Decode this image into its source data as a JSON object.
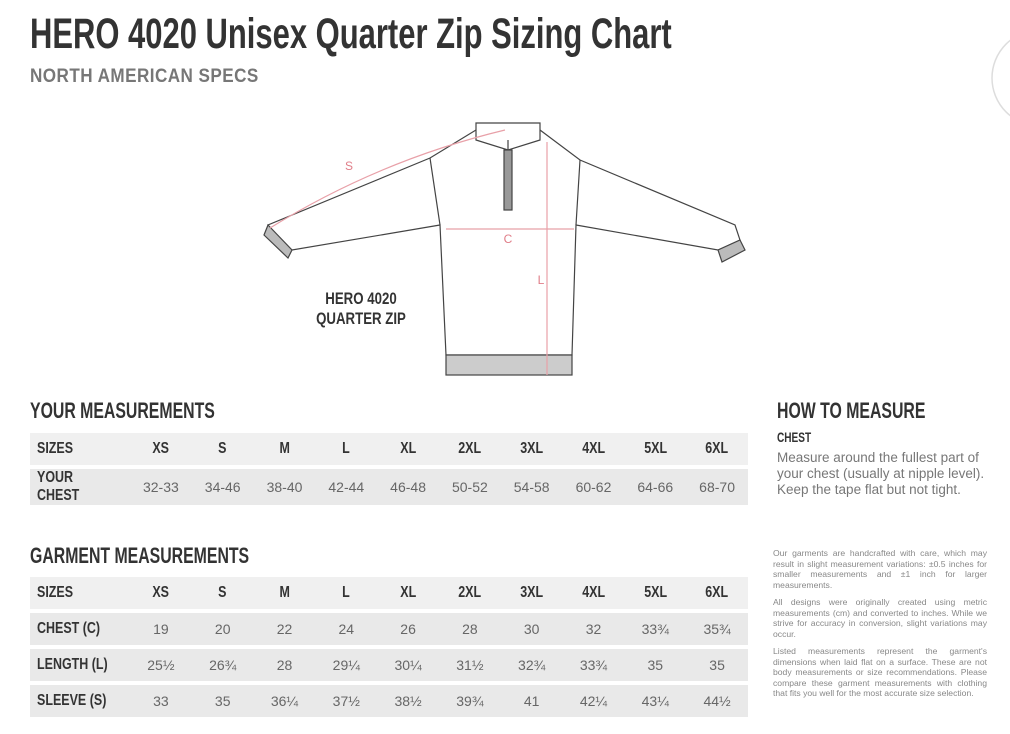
{
  "header": {
    "title": "HERO 4020 Unisex Quarter Zip Sizing Chart",
    "subtitle": "NORTH AMERICAN SPECS"
  },
  "diagram": {
    "label": [
      "HERO 4020",
      "QUARTER ZIP"
    ],
    "sleeve_marker": "S",
    "chest_marker": "C",
    "length_marker": "L"
  },
  "your_measurements": {
    "title": "YOUR MEASUREMENTS",
    "header": [
      "SIZES",
      "XS",
      "S",
      "M",
      "L",
      "XL",
      "2XL",
      "3XL",
      "4XL",
      "5XL",
      "6XL"
    ],
    "rows": [
      [
        "YOUR CHEST",
        "32-33",
        "34-46",
        "38-40",
        "42-44",
        "46-48",
        "50-52",
        "54-58",
        "60-62",
        "64-66",
        "68-70"
      ]
    ]
  },
  "how_to_measure": {
    "title": "HOW TO MEASURE",
    "subtitle": "CHEST",
    "text": "Measure around the fullest part of your chest (usually at nipple level). Keep the tape flat but not tight."
  },
  "garment_measurements": {
    "title": "GARMENT MEASUREMENTS",
    "header": [
      "SIZES",
      "XS",
      "S",
      "M",
      "L",
      "XL",
      "2XL",
      "3XL",
      "4XL",
      "5XL",
      "6XL"
    ],
    "rows": [
      [
        "CHEST (C)",
        "19",
        "20",
        "22",
        "24",
        "26",
        "28",
        "30",
        "32",
        "33¾",
        "35¾"
      ],
      [
        "LENGTH (L)",
        "25½",
        "26¾",
        "28",
        "29¼",
        "30¼",
        "31½",
        "32¾",
        "33¾",
        "35",
        "35"
      ],
      [
        "SLEEVE (S)",
        "33",
        "35",
        "36¼",
        "37½",
        "38½",
        "39¾",
        "41",
        "42¼",
        "43¼",
        "44½"
      ]
    ]
  },
  "notes": [
    "Our garments are handcrafted with care, which may result in slight measurement variations: ±0.5 inches for smaller measurements and ±1 inch for larger measurements.",
    "All designs were originally created using metric measurements (cm) and converted to inches. While we strive for accuracy in conversion, slight variations may occur.",
    "Listed measurements represent the garment's dimensions when laid flat on a surface. These are not body measurements or size recommendations. Please compare these garment measurements with clothing that fits you well for the most accurate size selection."
  ]
}
